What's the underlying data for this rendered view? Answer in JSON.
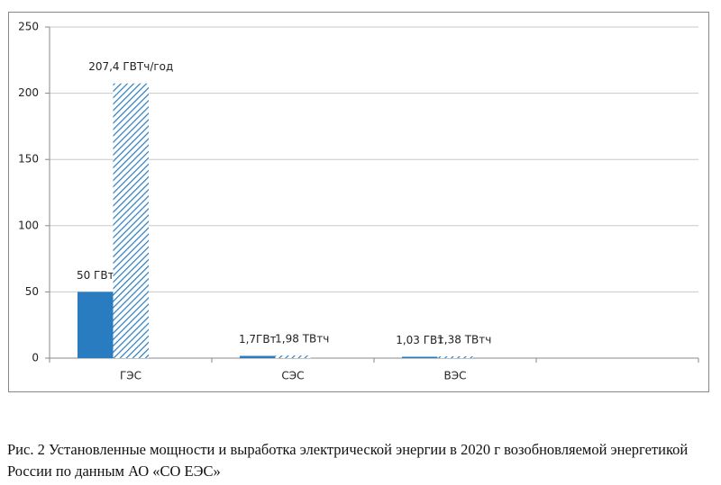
{
  "chart_data": {
    "type": "bar",
    "categories": [
      "ГЭС",
      "СЭС",
      "ВЭС",
      null
    ],
    "series": [
      {
        "color": "#2a7cc0",
        "values": [
          50,
          1.7,
          1.03,
          null
        ],
        "value_labels": [
          "50 ГВт",
          "1,7ГВт",
          "1,03 ГВт",
          null
        ]
      },
      {
        "color": "#2a7cc0",
        "pattern": "hatch",
        "values": [
          207.4,
          1.98,
          1.38,
          null
        ],
        "value_labels": [
          "207,4 ГВТч/год",
          "1,98 ТВтч",
          "1,38 ТВтч",
          null
        ]
      }
    ],
    "ylim": [
      0,
      250
    ],
    "yticks": [
      0,
      50,
      100,
      150,
      200,
      250
    ],
    "grid": true,
    "caption": "Рис. 2 Установленные мощности и выработка электрической энергии в 2020 г возобновляемой энергетикой России по данным АО «СО ЕЭС»"
  }
}
